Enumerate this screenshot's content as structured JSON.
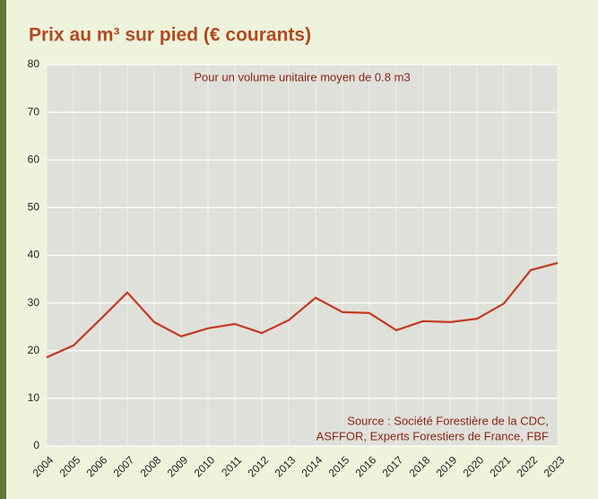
{
  "chart_data": {
    "type": "line",
    "title": "Prix au m³ sur pied (€ courants)",
    "subtitle": "Pour un volume unitaire moyen de 0.8 m3",
    "source": [
      "Source : Société Forestière de la CDC,",
      "ASFFOR, Experts Forestiers de France, FBF"
    ],
    "categories": [
      "2004",
      "2005",
      "2006",
      "2007",
      "2008",
      "2009",
      "2010",
      "2011",
      "2012",
      "2013",
      "2014",
      "2015",
      "2016",
      "2017",
      "2018",
      "2019",
      "2020",
      "2021",
      "2022",
      "2023"
    ],
    "series": [
      {
        "color": "#c23a22",
        "values": [
          18.6,
          21.1,
          26.6,
          32.2,
          26.0,
          23.0,
          24.7,
          25.6,
          23.7,
          26.4,
          31.1,
          28.1,
          27.9,
          24.3,
          26.2,
          26.0,
          26.7,
          29.9,
          36.9,
          38.4
        ]
      }
    ],
    "ylim": [
      0,
      80
    ],
    "yticks": [
      0,
      10,
      20,
      30,
      40,
      50,
      60,
      70,
      80
    ],
    "grid": true
  }
}
